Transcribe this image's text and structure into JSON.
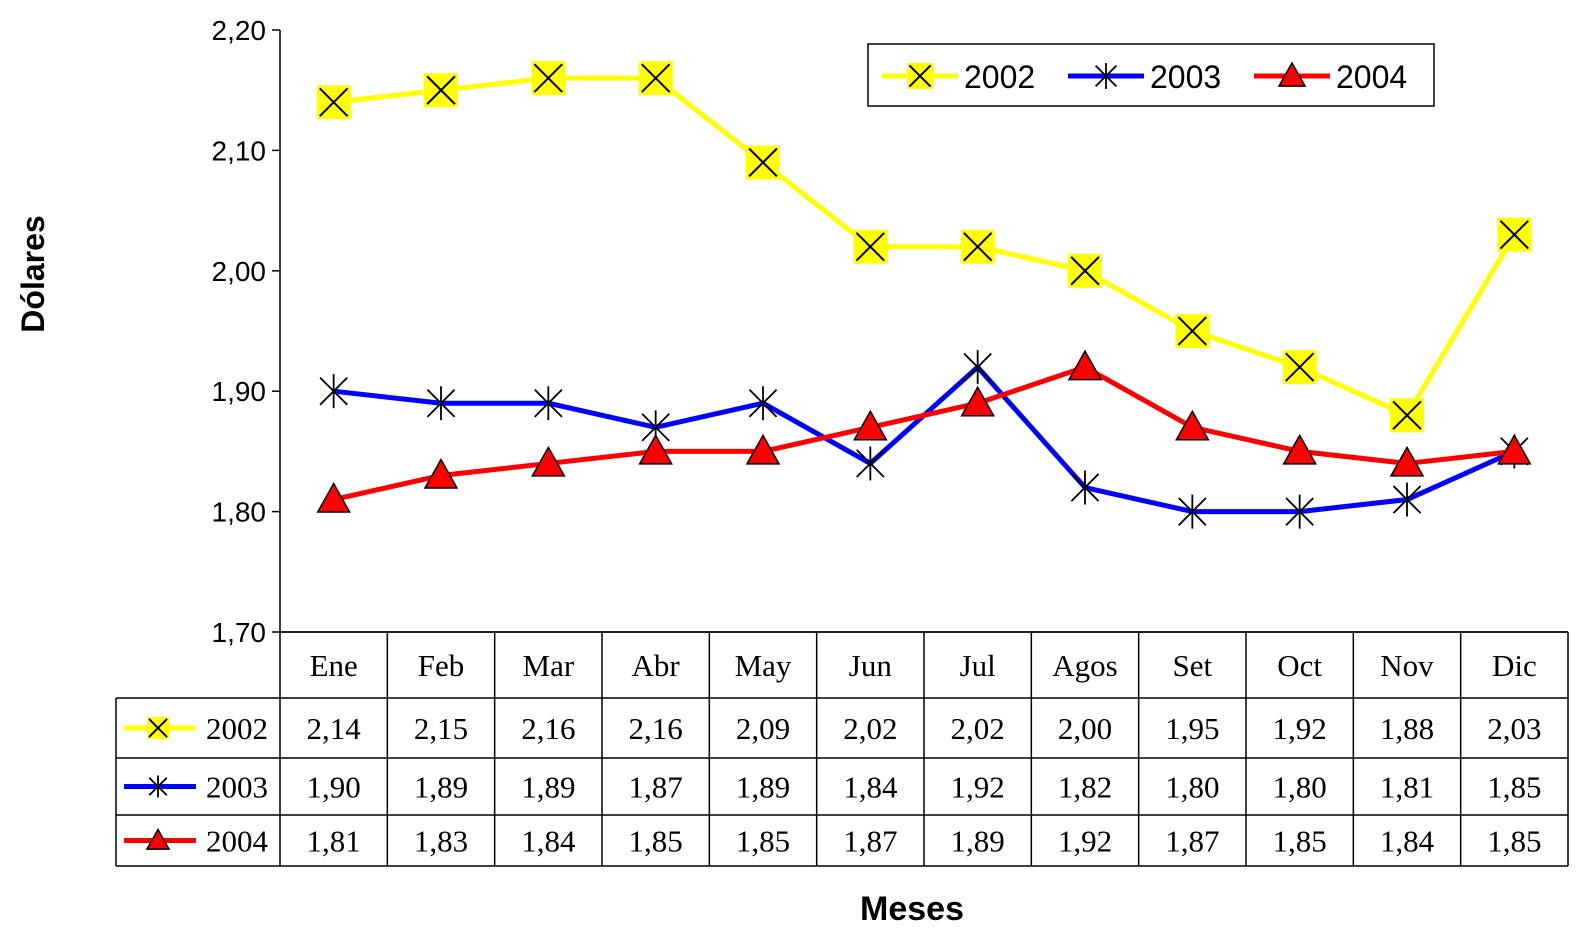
{
  "chart_data": {
    "type": "line",
    "title": "",
    "xlabel": "Meses",
    "ylabel": "Dólares",
    "ylim": [
      1.7,
      2.2
    ],
    "yticks": [
      "1,70",
      "1,80",
      "1,90",
      "2,00",
      "2,10",
      "2,20"
    ],
    "grid": false,
    "legend_position": "top-right",
    "categories": [
      "Ene",
      "Feb",
      "Mar",
      "Abr",
      "May",
      "Jun",
      "Jul",
      "Agos",
      "Set",
      "Oct",
      "Nov",
      "Dic"
    ],
    "series": [
      {
        "name": "2002",
        "color": "#ffff00",
        "marker": "x-square",
        "values": [
          2.14,
          2.15,
          2.16,
          2.16,
          2.09,
          2.02,
          2.02,
          2.0,
          1.95,
          1.92,
          1.88,
          2.03
        ],
        "labels": [
          "2,14",
          "2,15",
          "2,16",
          "2,16",
          "2,09",
          "2,02",
          "2,02",
          "2,00",
          "1,95",
          "1,92",
          "1,88",
          "2,03"
        ]
      },
      {
        "name": "2003",
        "color": "#0000ff",
        "marker": "star",
        "values": [
          1.9,
          1.89,
          1.89,
          1.87,
          1.89,
          1.84,
          1.92,
          1.82,
          1.8,
          1.8,
          1.81,
          1.85
        ],
        "labels": [
          "1,90",
          "1,89",
          "1,89",
          "1,87",
          "1,89",
          "1,84",
          "1,92",
          "1,82",
          "1,80",
          "1,80",
          "1,81",
          "1,85"
        ]
      },
      {
        "name": "2004",
        "color": "#ff0000",
        "marker": "triangle",
        "values": [
          1.81,
          1.83,
          1.84,
          1.85,
          1.85,
          1.87,
          1.89,
          1.92,
          1.87,
          1.85,
          1.84,
          1.85
        ],
        "labels": [
          "1,81",
          "1,83",
          "1,84",
          "1,85",
          "1,85",
          "1,87",
          "1,89",
          "1,92",
          "1,87",
          "1,85",
          "1,84",
          "1,85"
        ]
      }
    ]
  }
}
